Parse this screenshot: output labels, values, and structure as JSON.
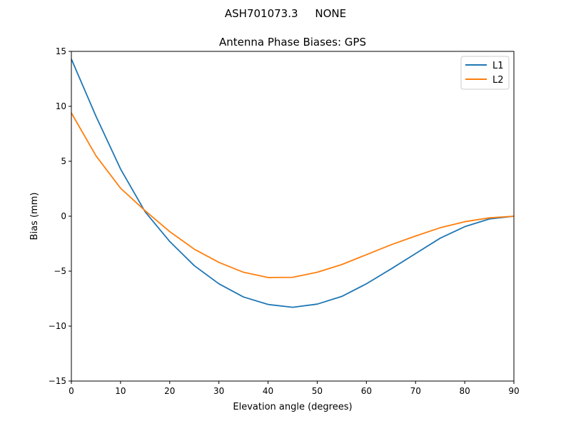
{
  "chart_data": {
    "type": "line",
    "suptitle": "ASH701073.3     NONE",
    "title": "Antenna Phase Biases: GPS",
    "xlabel": "Elevation angle (degrees)",
    "ylabel": "Bias (mm)",
    "xlim": [
      0,
      90
    ],
    "ylim": [
      -15,
      15
    ],
    "xticks": [
      0,
      10,
      20,
      30,
      40,
      50,
      60,
      70,
      80,
      90
    ],
    "yticks": [
      -15,
      -10,
      -5,
      0,
      5,
      10,
      15
    ],
    "ytick_labels": [
      "−15",
      "−10",
      "−5",
      "0",
      "5",
      "10",
      "15"
    ],
    "grid": false,
    "legend_position": "top-right",
    "x": [
      0,
      5,
      10,
      15,
      20,
      25,
      30,
      35,
      40,
      45,
      50,
      55,
      60,
      65,
      70,
      75,
      80,
      85,
      90
    ],
    "series": [
      {
        "name": "L1",
        "color": "#1f77b4",
        "values": [
          14.3,
          9.1,
          4.3,
          0.4,
          -2.3,
          -4.5,
          -6.15,
          -7.35,
          -8.03,
          -8.29,
          -8.0,
          -7.3,
          -6.15,
          -4.8,
          -3.4,
          -2.0,
          -0.95,
          -0.25,
          0.0
        ]
      },
      {
        "name": "L2",
        "color": "#ff7f0e",
        "values": [
          9.4,
          5.5,
          2.55,
          0.5,
          -1.4,
          -3.0,
          -4.2,
          -5.1,
          -5.58,
          -5.56,
          -5.1,
          -4.4,
          -3.5,
          -2.6,
          -1.8,
          -1.05,
          -0.5,
          -0.15,
          0.0
        ]
      }
    ]
  }
}
